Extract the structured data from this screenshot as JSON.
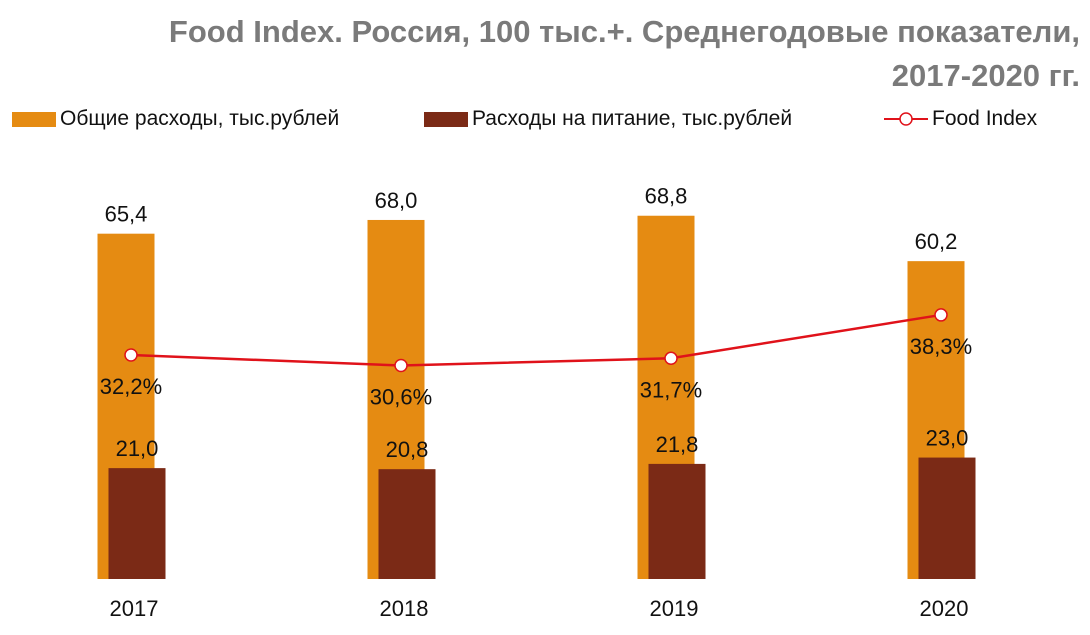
{
  "title_line1": "Food Index. Россия, 100 тыс.+. Среднегодовые показатели,",
  "title_line2": "2017-2020 гг.",
  "colors": {
    "total": "#e58b12",
    "food": "#7b2a16",
    "index": "#e0121a",
    "title": "#7a7a7a"
  },
  "chart_data": {
    "type": "bar",
    "title": "Food Index. Россия, 100 тыс.+. Среднегодовые показатели, 2017-2020 гг.",
    "categories": [
      "2017",
      "2018",
      "2019",
      "2020"
    ],
    "legend_position": "top",
    "grid": false,
    "series": [
      {
        "name": "Общие расходы, тыс.рублей",
        "type": "bar",
        "values": [
          65.4,
          68.0,
          68.8,
          60.2
        ],
        "labels": [
          "65,4",
          "68,0",
          "68,8",
          "60,2"
        ]
      },
      {
        "name": "Расходы на питание, тыс.рублей",
        "type": "bar",
        "values": [
          21.0,
          20.8,
          21.8,
          23.0
        ],
        "labels": [
          "21,0",
          "20,8",
          "21,8",
          "23,0"
        ]
      },
      {
        "name": "Food Index",
        "type": "line",
        "values": [
          32.2,
          30.6,
          31.7,
          38.3
        ],
        "labels": [
          "32,2%",
          "30,6%",
          "31,7%",
          "38,3%"
        ]
      }
    ]
  }
}
